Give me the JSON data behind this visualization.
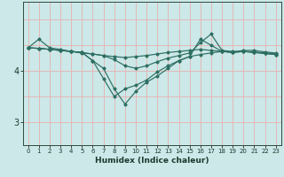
{
  "xlabel": "Humidex (Indice chaleur)",
  "bg_color": "#cce8e8",
  "line_color": "#2d6e62",
  "grid_color_v": "#e8b0b0",
  "grid_color_h": "#e8b0b0",
  "x_ticks": [
    0,
    1,
    2,
    3,
    4,
    5,
    6,
    7,
    8,
    9,
    10,
    11,
    12,
    13,
    14,
    15,
    16,
    17,
    18,
    19,
    20,
    21,
    22,
    23
  ],
  "y_ticks": [
    3,
    4
  ],
  "xlim": [
    -0.5,
    23.5
  ],
  "ylim": [
    2.55,
    5.35
  ],
  "lines": [
    [
      4.45,
      4.62,
      4.45,
      4.42,
      4.38,
      4.35,
      4.33,
      4.3,
      4.28,
      4.26,
      4.28,
      4.3,
      4.33,
      4.36,
      4.38,
      4.4,
      4.42,
      4.4,
      4.38,
      4.37,
      4.4,
      4.4,
      4.37,
      4.35
    ],
    [
      4.45,
      4.44,
      4.42,
      4.4,
      4.38,
      4.36,
      4.33,
      4.3,
      4.22,
      4.1,
      4.05,
      4.1,
      4.18,
      4.25,
      4.3,
      4.35,
      4.55,
      4.72,
      4.4,
      4.38,
      4.38,
      4.37,
      4.35,
      4.33
    ],
    [
      4.45,
      4.44,
      4.42,
      4.4,
      4.38,
      4.36,
      4.2,
      3.85,
      3.5,
      3.65,
      3.72,
      3.82,
      3.98,
      4.1,
      4.2,
      4.28,
      4.62,
      4.5,
      4.38,
      4.36,
      4.38,
      4.36,
      4.34,
      4.32
    ],
    [
      4.45,
      4.44,
      4.42,
      4.4,
      4.38,
      4.36,
      4.2,
      4.05,
      3.65,
      3.35,
      3.6,
      3.78,
      3.9,
      4.05,
      4.2,
      4.28,
      4.32,
      4.35,
      4.38,
      4.36,
      4.38,
      4.36,
      4.34,
      4.32
    ]
  ]
}
